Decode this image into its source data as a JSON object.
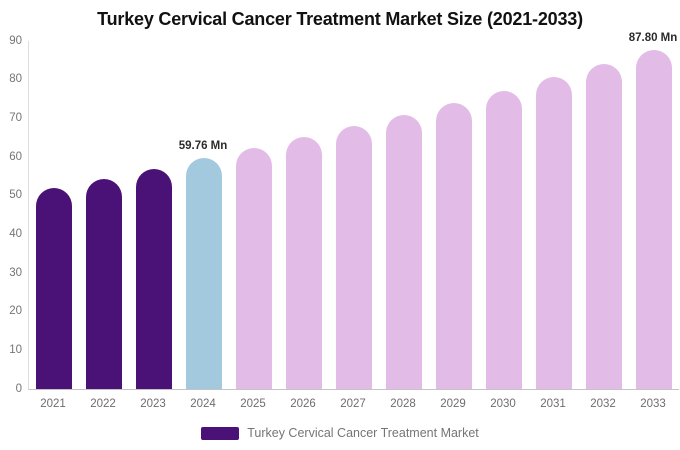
{
  "chart_data": {
    "type": "bar",
    "title": "Turkey Cervical Cancer Treatment Market Size (2021-2033)",
    "categories": [
      "2021",
      "2022",
      "2023",
      "2024",
      "2025",
      "2026",
      "2027",
      "2028",
      "2029",
      "2030",
      "2031",
      "2032",
      "2033"
    ],
    "values": [
      52.0,
      54.4,
      56.9,
      59.76,
      62.4,
      65.1,
      67.9,
      70.9,
      74.0,
      77.2,
      80.6,
      84.1,
      87.8
    ],
    "unit": "Mn",
    "xlabel": "",
    "ylabel": "",
    "ylim": [
      0,
      90
    ],
    "yticks": [
      0,
      10,
      20,
      30,
      40,
      50,
      60,
      70,
      80,
      90
    ],
    "grid": false,
    "legend_position": "bottom",
    "bar_colors": [
      "#4A1277",
      "#4A1277",
      "#4A1277",
      "#A2C9DE",
      "#E3BBE7",
      "#E3BBE7",
      "#E3BBE7",
      "#E3BBE7",
      "#E3BBE7",
      "#E3BBE7",
      "#E3BBE7",
      "#E3BBE7",
      "#E3BBE7"
    ],
    "color_roles": {
      "historical": "#4A1277",
      "base_year": "#A2C9DE",
      "forecast": "#E3BBE7"
    },
    "annotations": [
      {
        "category": "2024",
        "text": "59.76 Mn"
      },
      {
        "category": "2033",
        "text": "87.80 Mn"
      }
    ],
    "legend": {
      "items": [
        {
          "label": "Turkey Cervical Cancer Treatment Market",
          "color": "#4A1277"
        }
      ]
    },
    "axis_text_color": "#757575"
  }
}
